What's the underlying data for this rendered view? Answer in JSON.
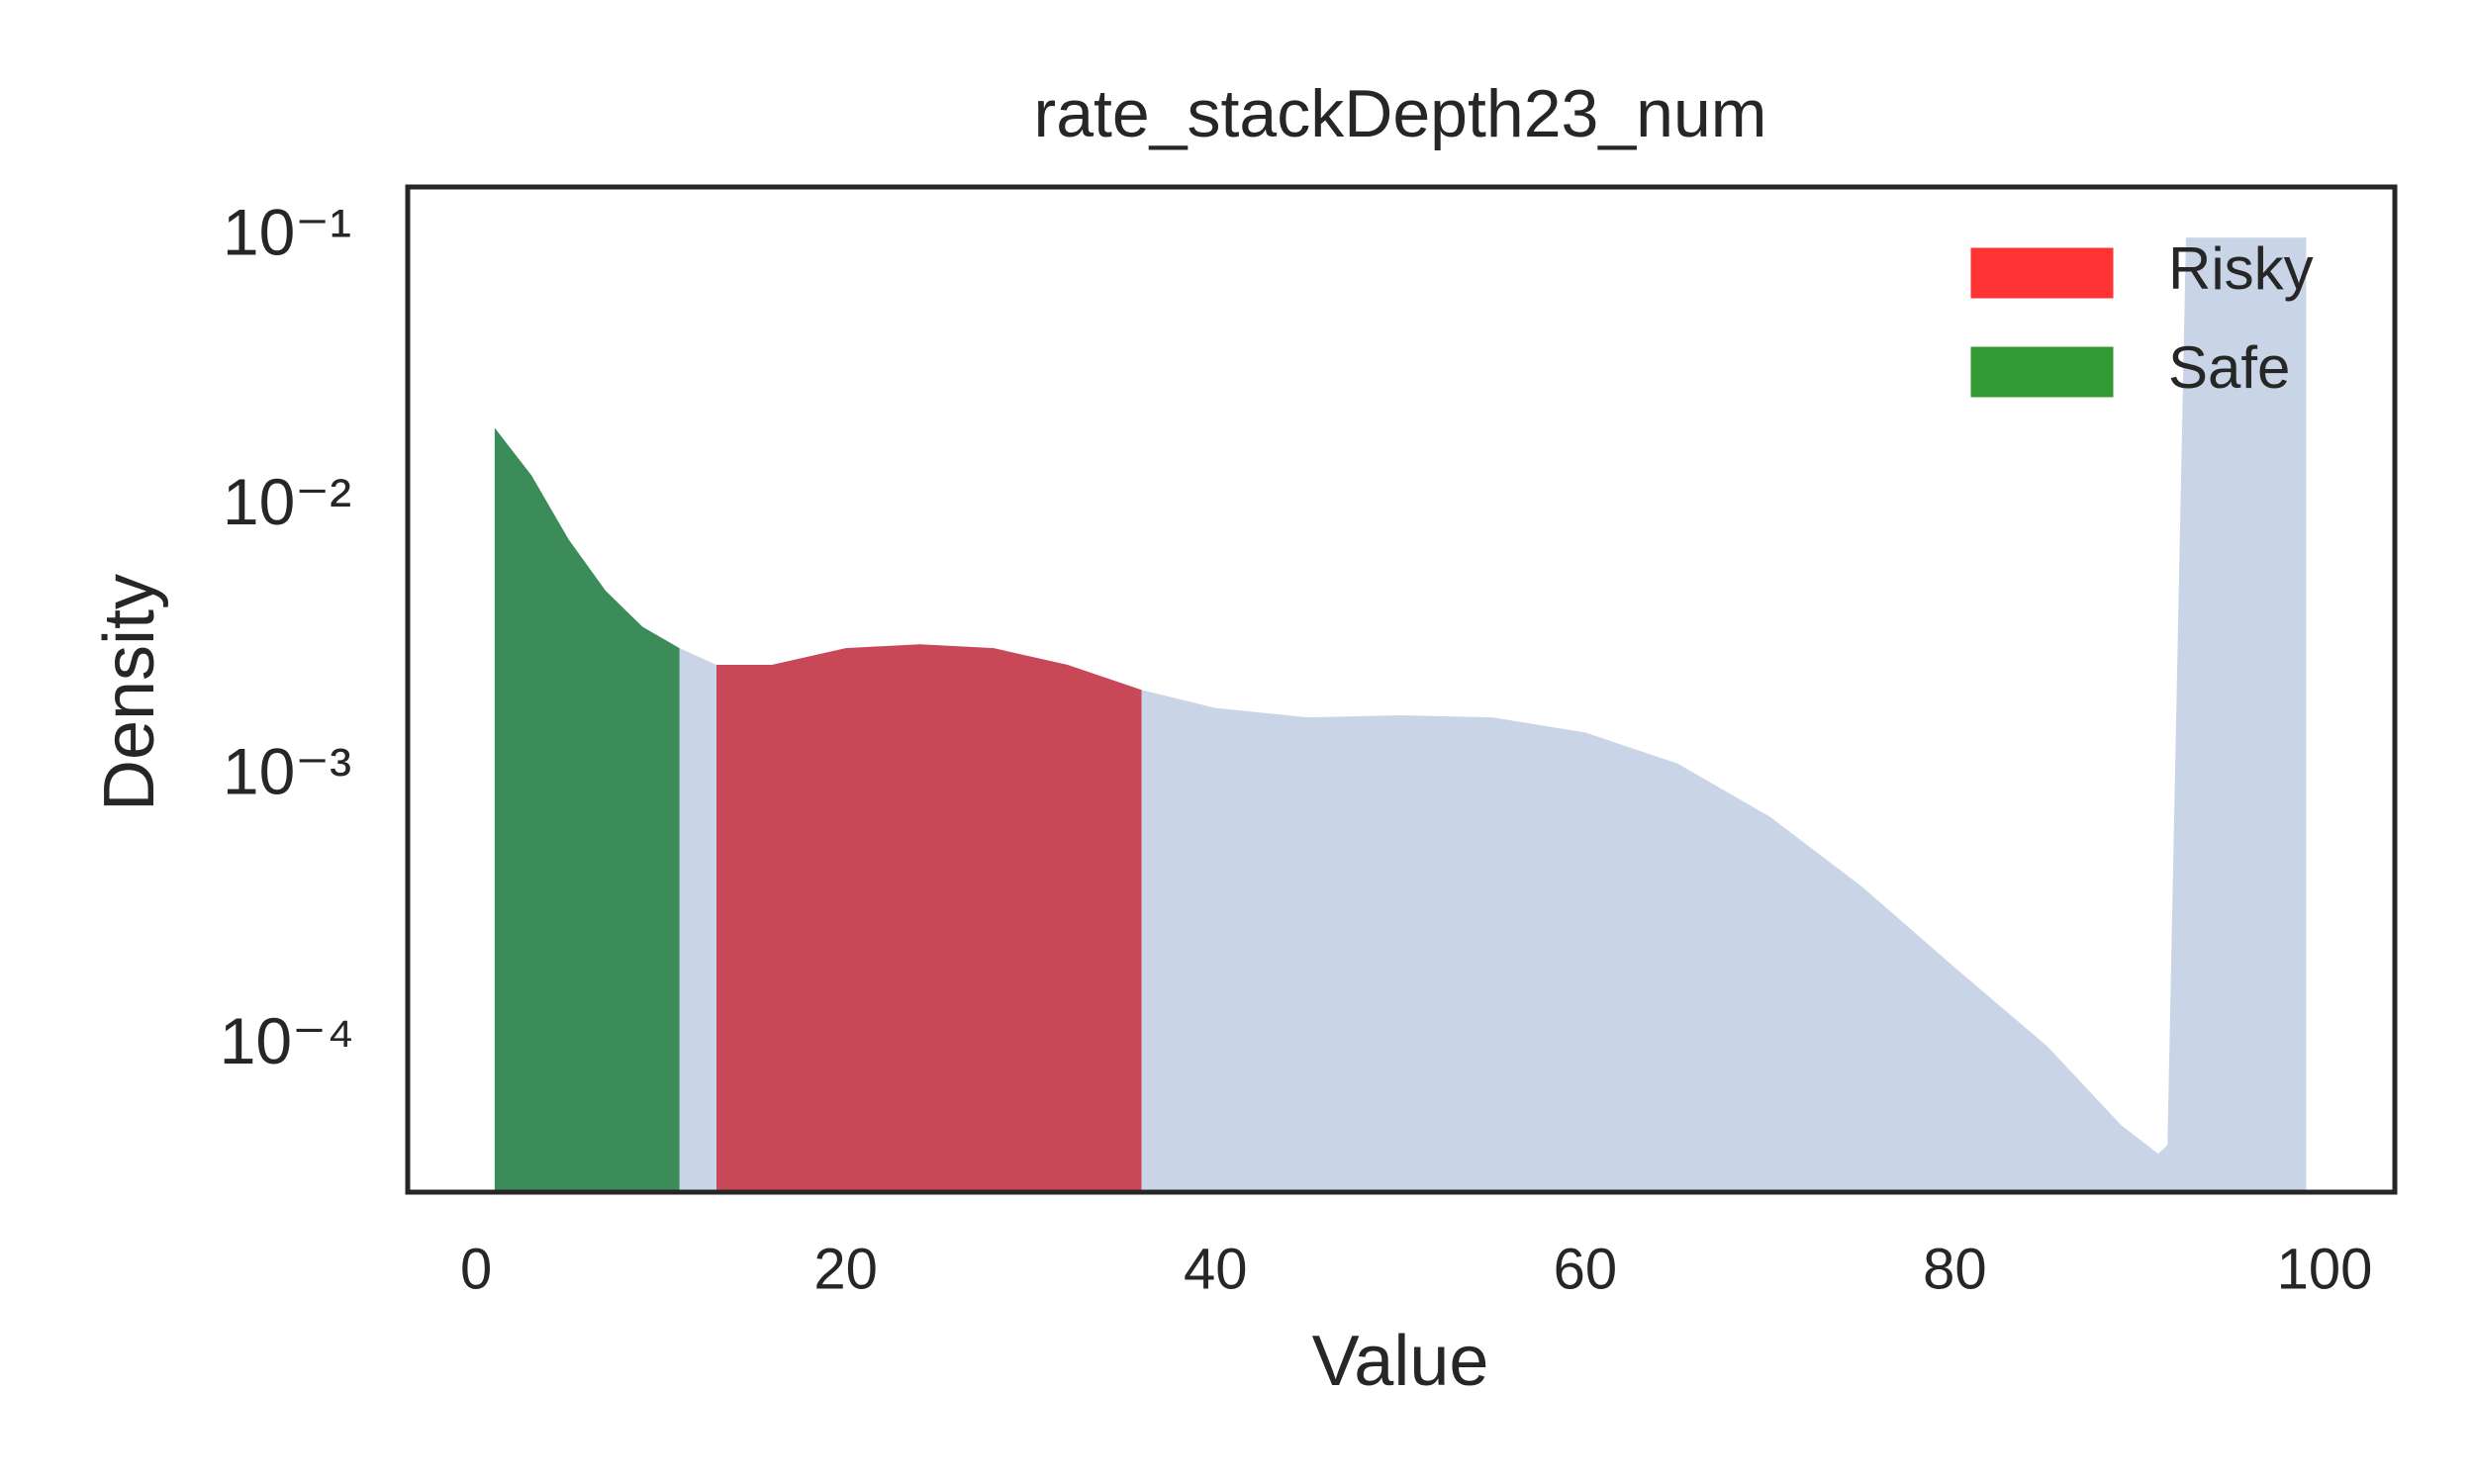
{
  "chart_data": {
    "type": "area",
    "title": "rate_stackDepth23_num",
    "x_label": "Value",
    "y_label": "Density",
    "x": [
      1,
      3,
      5,
      7,
      9,
      11,
      13,
      16,
      20,
      24,
      28,
      32,
      36,
      40,
      45,
      50,
      55,
      60,
      65,
      70,
      75,
      80,
      85,
      89,
      91,
      91.5,
      92.5,
      99
    ],
    "values": [
      0.0197,
      0.0131,
      0.0076,
      0.0049,
      0.0036,
      0.003,
      0.0026,
      0.0026,
      0.003,
      0.0031,
      0.003,
      0.0026,
      0.0021,
      0.0018,
      0.00166,
      0.00169,
      0.00166,
      0.00146,
      0.00112,
      0.00071,
      0.00039,
      0.000196,
      0.0001,
      5.1e-05,
      4e-05,
      4.3e-05,
      0.1,
      0.1
    ],
    "color": "#c9d5e6",
    "regions": [
      {
        "name": "Risky",
        "color": "#ff3333",
        "fill": "#c84858",
        "range": [
          13,
          36
        ]
      },
      {
        "name": "Safe",
        "color": "#339933",
        "fill": "#3c8c5a",
        "range": [
          1,
          11
        ]
      }
    ],
    "xlim": [
      -3.7,
      103.8
    ],
    "xticks": [
      0,
      20,
      40,
      60,
      80,
      100
    ],
    "ylim": [
      2.88e-05,
      0.154
    ],
    "log_y": true,
    "yticks": [
      {
        "value": 0.1,
        "label": "10⁻¹"
      },
      {
        "value": 0.01,
        "label": "10⁻²"
      },
      {
        "value": 0.001,
        "label": "10⁻³"
      },
      {
        "value": 0.0001,
        "label": "10⁻⁴"
      }
    ],
    "legend": "upper right",
    "grid": false
  }
}
